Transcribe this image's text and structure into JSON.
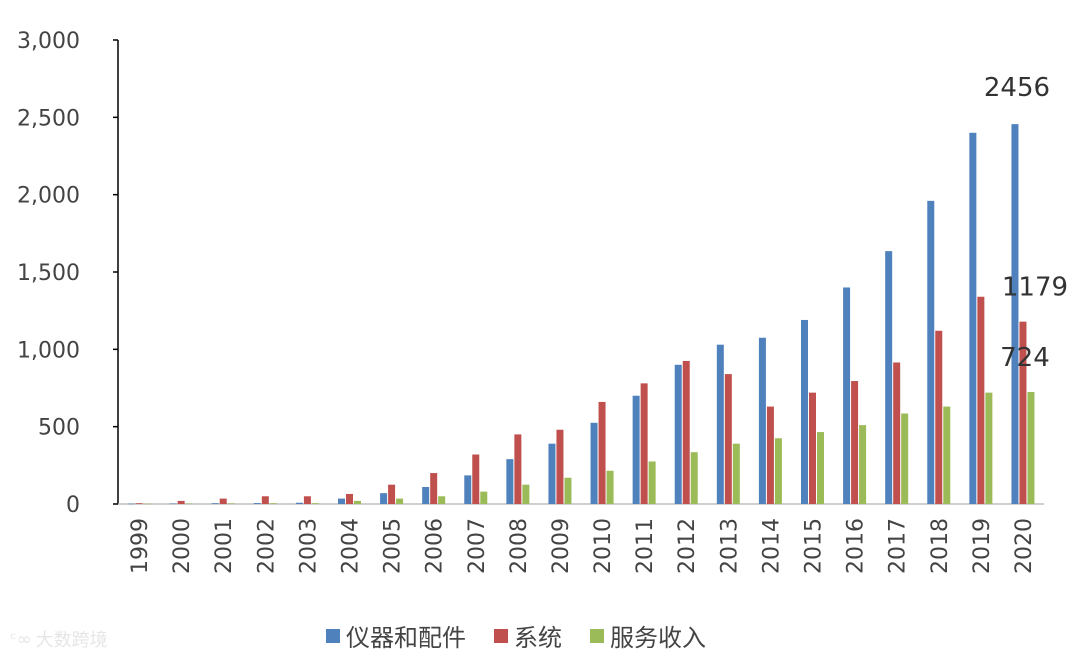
{
  "chart_data": {
    "type": "bar",
    "categories": [
      "1999",
      "2000",
      "2001",
      "2002",
      "2003",
      "2004",
      "2005",
      "2006",
      "2007",
      "2008",
      "2009",
      "2010",
      "2011",
      "2012",
      "2013",
      "2014",
      "2015",
      "2016",
      "2017",
      "2018",
      "2019",
      "2020"
    ],
    "series": [
      {
        "name": "仪器和配件",
        "color": "#4f81bd",
        "values": [
          2,
          3,
          5,
          6,
          8,
          35,
          70,
          110,
          185,
          290,
          390,
          525,
          700,
          900,
          1030,
          1075,
          1190,
          1400,
          1635,
          1960,
          2400,
          2456
        ]
      },
      {
        "name": "系统",
        "color": "#c0504d",
        "values": [
          5,
          20,
          35,
          50,
          50,
          65,
          125,
          200,
          320,
          450,
          480,
          660,
          780,
          925,
          840,
          630,
          720,
          795,
          915,
          1120,
          1340,
          1179
        ]
      },
      {
        "name": "服务收入",
        "color": "#9bbb59",
        "values": [
          2,
          3,
          4,
          5,
          5,
          20,
          35,
          50,
          80,
          125,
          170,
          215,
          275,
          335,
          390,
          425,
          465,
          510,
          585,
          630,
          720,
          724
        ]
      }
    ],
    "ylim": [
      0,
      3000
    ],
    "yticks": [
      "0",
      "500",
      "1,000",
      "1,500",
      "2,000",
      "2,500",
      "3,000"
    ],
    "data_labels": [
      {
        "text": "2456",
        "series": 0,
        "index": 21
      },
      {
        "text": "1179",
        "series": 1,
        "index": 21
      },
      {
        "text": "724",
        "series": 2,
        "index": 21
      }
    ],
    "legend_position": "bottom",
    "grid": false
  },
  "watermark": {
    "icon": "logo-icon",
    "text": "大数跨境"
  }
}
